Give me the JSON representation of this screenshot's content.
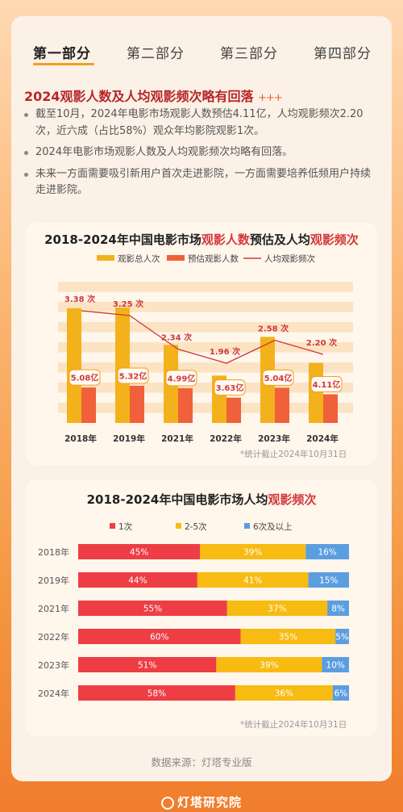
{
  "tabs": [
    "第一部分",
    "第二部分",
    "第三部分",
    "第四部分"
  ],
  "headline": "2024观影人数及人均观影频次略有回落",
  "headline_sparkle": "+++",
  "bullets": [
    "截至10月，2024年电影市场观影人数预估4.11亿，人均观影频次2.20次，近六成（占比58%）观众年均影院观影1次。",
    "2024年电影市场观影人数及人均观影频次均略有回落。",
    "未来一方面需要吸引新用户首次走进影院，一方面需要培养低频用户持续走进影院。"
  ],
  "chart1_title": {
    "pre": "2018-2024年中国电影市场",
    "hl1": "观影人数",
    "mid": "预估及人均",
    "hl2": "观影频次"
  },
  "chart2_title": {
    "pre": "2018-2024年中国电影市场人均",
    "hl": "观影频次"
  },
  "chart_data": [
    {
      "type": "bar",
      "categories": [
        "2018年",
        "2019年",
        "2021年",
        "2022年",
        "2023年",
        "2024年"
      ],
      "series": [
        {
          "name": "观影总人次",
          "values": [
            17.2,
            17.3,
            11.7,
            7.1,
            12.9,
            9.0
          ],
          "color": "#f3b21b"
        },
        {
          "name": "预估观影人数",
          "values": [
            5.08,
            5.32,
            4.99,
            3.63,
            5.04,
            4.11
          ],
          "labels": [
            "5.08亿",
            "5.32亿",
            "4.99亿",
            "3.63亿",
            "5.04亿",
            "4.11亿"
          ],
          "color": "#f0603a"
        },
        {
          "name": "人均观影频次",
          "type": "line",
          "values": [
            3.38,
            3.25,
            2.34,
            1.96,
            2.58,
            2.2
          ],
          "labels": [
            "3.38 次",
            "3.25 次",
            "2.34 次",
            "1.96 次",
            "2.58 次",
            "2.20 次"
          ],
          "color": "#d2383a"
        }
      ],
      "note": "*统计截止2024年10月31日"
    },
    {
      "type": "bar",
      "stacked": "horizontal-percent",
      "categories": [
        "2018年",
        "2019年",
        "2021年",
        "2022年",
        "2023年",
        "2024年"
      ],
      "series": [
        {
          "name": "1次",
          "values": [
            45,
            44,
            55,
            60,
            51,
            58
          ],
          "color": "#ee3d45"
        },
        {
          "name": "2-5次",
          "values": [
            39,
            41,
            37,
            35,
            39,
            36
          ],
          "color": "#f7bb12"
        },
        {
          "name": "6次及以上",
          "values": [
            16,
            15,
            8,
            5,
            10,
            6
          ],
          "color": "#5b9ee0"
        }
      ],
      "note": "*统计截止2024年10月31日"
    }
  ],
  "source": "数据来源：灯塔专业版",
  "footer": "灯塔研究院"
}
